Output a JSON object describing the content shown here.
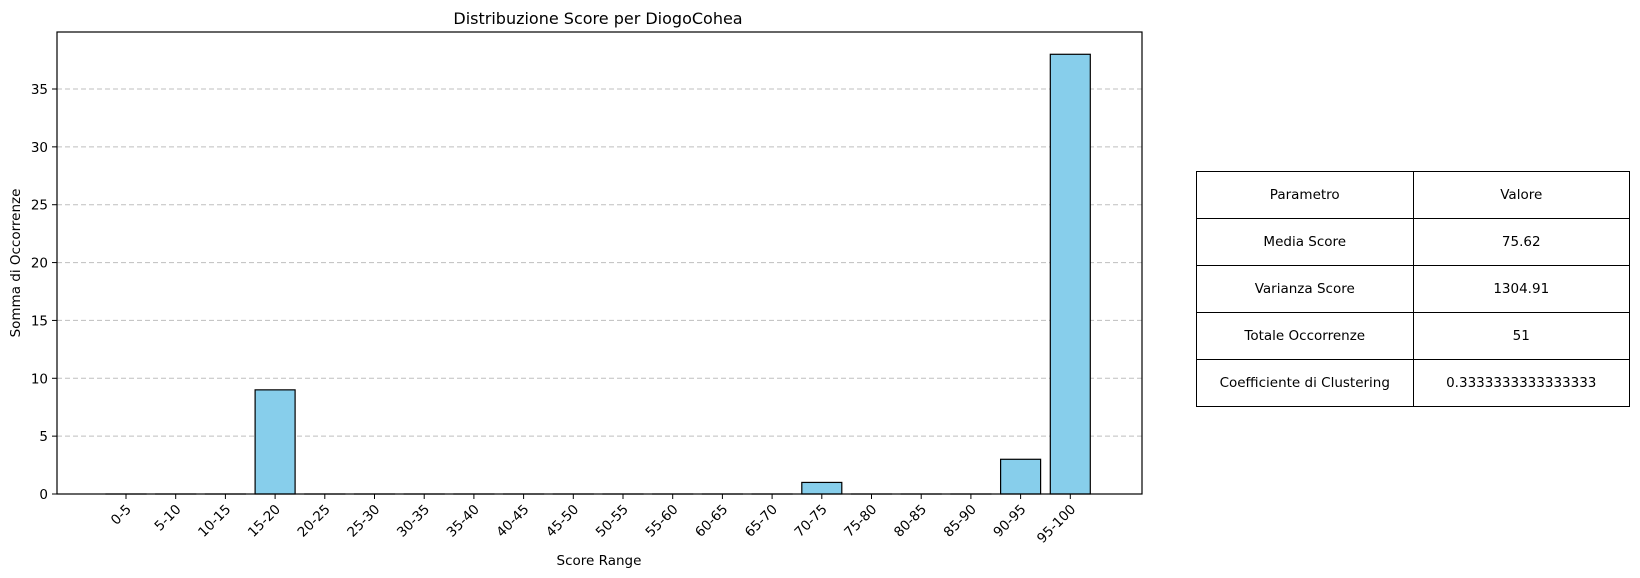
{
  "chart_data": {
    "type": "bar",
    "title": "Distribuzione Score per DiogoCohea",
    "xlabel": "Score Range",
    "ylabel": "Somma di Occorrenze",
    "categories": [
      "0-5",
      "5-10",
      "10-15",
      "15-20",
      "20-25",
      "25-30",
      "30-35",
      "35-40",
      "40-45",
      "45-50",
      "50-55",
      "55-60",
      "60-65",
      "65-70",
      "70-75",
      "75-80",
      "80-85",
      "85-90",
      "90-95",
      "95-100"
    ],
    "values": [
      0,
      0,
      0,
      9,
      0,
      0,
      0,
      0,
      0,
      0,
      0,
      0,
      0,
      0,
      1,
      0,
      0,
      0,
      3,
      38
    ],
    "ylim": [
      0,
      40
    ],
    "yticks": [
      0,
      5,
      10,
      15,
      20,
      25,
      30,
      35
    ],
    "grid": "y-dashed",
    "bar_color": "#87CEEB",
    "edge_color": "#000000"
  },
  "table": {
    "header": {
      "param": "Parametro",
      "value": "Valore"
    },
    "rows": [
      {
        "param": "Media Score",
        "value": "75.62"
      },
      {
        "param": "Varianza Score",
        "value": "1304.91"
      },
      {
        "param": "Totale Occorrenze",
        "value": "51"
      },
      {
        "param": "Coefficiente di Clustering",
        "value": "0.3333333333333333"
      }
    ]
  }
}
